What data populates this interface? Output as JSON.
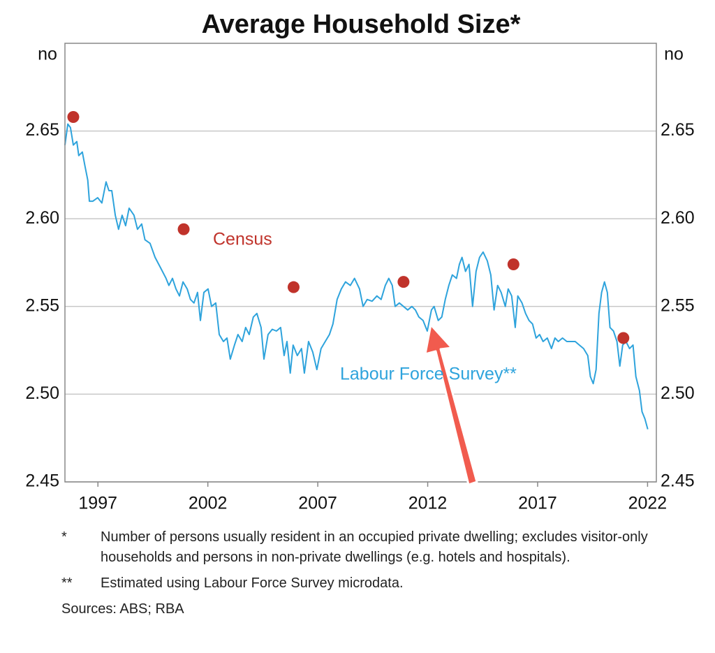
{
  "chart_data": {
    "type": "line",
    "title": "Average Household Size*",
    "y_unit": "no",
    "xlim": [
      1995.5,
      2022.4
    ],
    "xticks": [
      1997,
      2002,
      2007,
      2012,
      2017,
      2022
    ],
    "ylim": [
      2.45,
      2.7
    ],
    "yticks": [
      2.45,
      {
        "value": 2.5,
        "label": "2.50"
      },
      2.55,
      {
        "value": 2.6,
        "label": "2.60"
      },
      2.65
    ],
    "grid": true,
    "series": [
      {
        "name": "Labour Force Survey**",
        "type": "line",
        "color": "#2ea3dc",
        "x": [
          1995.5,
          1995.63,
          1995.75,
          1995.88,
          1996.04,
          1996.13,
          1996.29,
          1996.41,
          1996.54,
          1996.61,
          1996.77,
          1996.99,
          1997.18,
          1997.37,
          1997.5,
          1997.63,
          1997.79,
          1997.94,
          1998.1,
          1998.26,
          1998.42,
          1998.64,
          1998.8,
          1998.99,
          1999.14,
          1999.37,
          1999.6,
          1999.85,
          2000.1,
          2000.23,
          2000.39,
          2000.55,
          2000.71,
          2000.87,
          2001.06,
          2001.21,
          2001.37,
          2001.53,
          2001.66,
          2001.82,
          2002.01,
          2002.17,
          2002.36,
          2002.52,
          2002.71,
          2002.87,
          2003.02,
          2003.21,
          2003.37,
          2003.56,
          2003.72,
          2003.88,
          2004.07,
          2004.23,
          2004.42,
          2004.55,
          2004.74,
          2004.93,
          2005.12,
          2005.31,
          2005.47,
          2005.6,
          2005.75,
          2005.88,
          2006.07,
          2006.26,
          2006.39,
          2006.58,
          2006.77,
          2006.96,
          2007.15,
          2007.34,
          2007.53,
          2007.69,
          2007.88,
          2008.07,
          2008.26,
          2008.48,
          2008.67,
          2008.9,
          2009.06,
          2009.25,
          2009.47,
          2009.69,
          2009.88,
          2010.07,
          2010.23,
          2010.39,
          2010.52,
          2010.71,
          2010.9,
          2011.09,
          2011.28,
          2011.44,
          2011.6,
          2011.79,
          2011.98,
          2012.17,
          2012.29,
          2012.48,
          2012.64,
          2012.8,
          2012.96,
          2013.12,
          2013.31,
          2013.44,
          2013.56,
          2013.72,
          2013.88,
          2014.04,
          2014.2,
          2014.36,
          2014.52,
          2014.71,
          2014.87,
          2015.02,
          2015.18,
          2015.34,
          2015.53,
          2015.66,
          2015.82,
          2015.98,
          2016.1,
          2016.29,
          2016.45,
          2016.61,
          2016.77,
          2016.93,
          2017.09,
          2017.25,
          2017.44,
          2017.63,
          2017.79,
          2017.94,
          2018.13,
          2018.33,
          2018.52,
          2018.71,
          2018.9,
          2019.09,
          2019.28,
          2019.4,
          2019.53,
          2019.66,
          2019.79,
          2019.91,
          2020.04,
          2020.17,
          2020.29,
          2020.45,
          2020.61,
          2020.74,
          2020.87,
          2021.02,
          2021.18,
          2021.34,
          2021.47,
          2021.63,
          2021.75,
          2021.88,
          2022.01
        ],
        "values": [
          2.642,
          2.654,
          2.652,
          2.642,
          2.644,
          2.636,
          2.638,
          2.63,
          2.622,
          2.61,
          2.61,
          2.612,
          2.609,
          2.621,
          2.616,
          2.616,
          2.602,
          2.594,
          2.602,
          2.596,
          2.606,
          2.602,
          2.594,
          2.597,
          2.588,
          2.586,
          2.578,
          2.572,
          2.566,
          2.562,
          2.566,
          2.56,
          2.556,
          2.564,
          2.56,
          2.554,
          2.552,
          2.558,
          2.542,
          2.558,
          2.56,
          2.55,
          2.552,
          2.534,
          2.53,
          2.532,
          2.52,
          2.528,
          2.534,
          2.53,
          2.538,
          2.534,
          2.544,
          2.546,
          2.538,
          2.52,
          2.534,
          2.537,
          2.536,
          2.538,
          2.522,
          2.53,
          2.512,
          2.528,
          2.522,
          2.526,
          2.512,
          2.53,
          2.524,
          2.514,
          2.526,
          2.53,
          2.534,
          2.54,
          2.554,
          2.56,
          2.564,
          2.562,
          2.566,
          2.56,
          2.55,
          2.554,
          2.553,
          2.556,
          2.554,
          2.562,
          2.566,
          2.562,
          2.55,
          2.552,
          2.55,
          2.548,
          2.55,
          2.548,
          2.544,
          2.542,
          2.536,
          2.548,
          2.55,
          2.542,
          2.544,
          2.554,
          2.562,
          2.568,
          2.566,
          2.574,
          2.578,
          2.57,
          2.574,
          2.55,
          2.57,
          2.578,
          2.581,
          2.576,
          2.568,
          2.548,
          2.562,
          2.558,
          2.55,
          2.56,
          2.556,
          2.538,
          2.556,
          2.552,
          2.546,
          2.542,
          2.54,
          2.532,
          2.534,
          2.53,
          2.532,
          2.526,
          2.532,
          2.53,
          2.532,
          2.53,
          2.53,
          2.53,
          2.528,
          2.526,
          2.522,
          2.51,
          2.506,
          2.514,
          2.546,
          2.558,
          2.564,
          2.558,
          2.538,
          2.536,
          2.53,
          2.516,
          2.528,
          2.53,
          2.526,
          2.528,
          2.51,
          2.502,
          2.49,
          2.486,
          2.48
        ]
      },
      {
        "name": "Census",
        "type": "scatter",
        "color": "#c0332b",
        "x": [
          1995.88,
          2000.9,
          2005.9,
          2010.9,
          2015.9,
          2020.9
        ],
        "values": [
          2.658,
          2.594,
          2.561,
          2.564,
          2.574,
          2.532
        ]
      }
    ],
    "notes": [
      {
        "marker": "*",
        "text": "Number of persons usually resident in an occupied private dwelling; excludes visitor-only households and persons in non-private dwellings (e.g. hotels and hospitals)."
      },
      {
        "marker": "**",
        "text": "Estimated using Labour Force Survey microdata."
      }
    ],
    "sources": "Sources: ABS; RBA"
  }
}
